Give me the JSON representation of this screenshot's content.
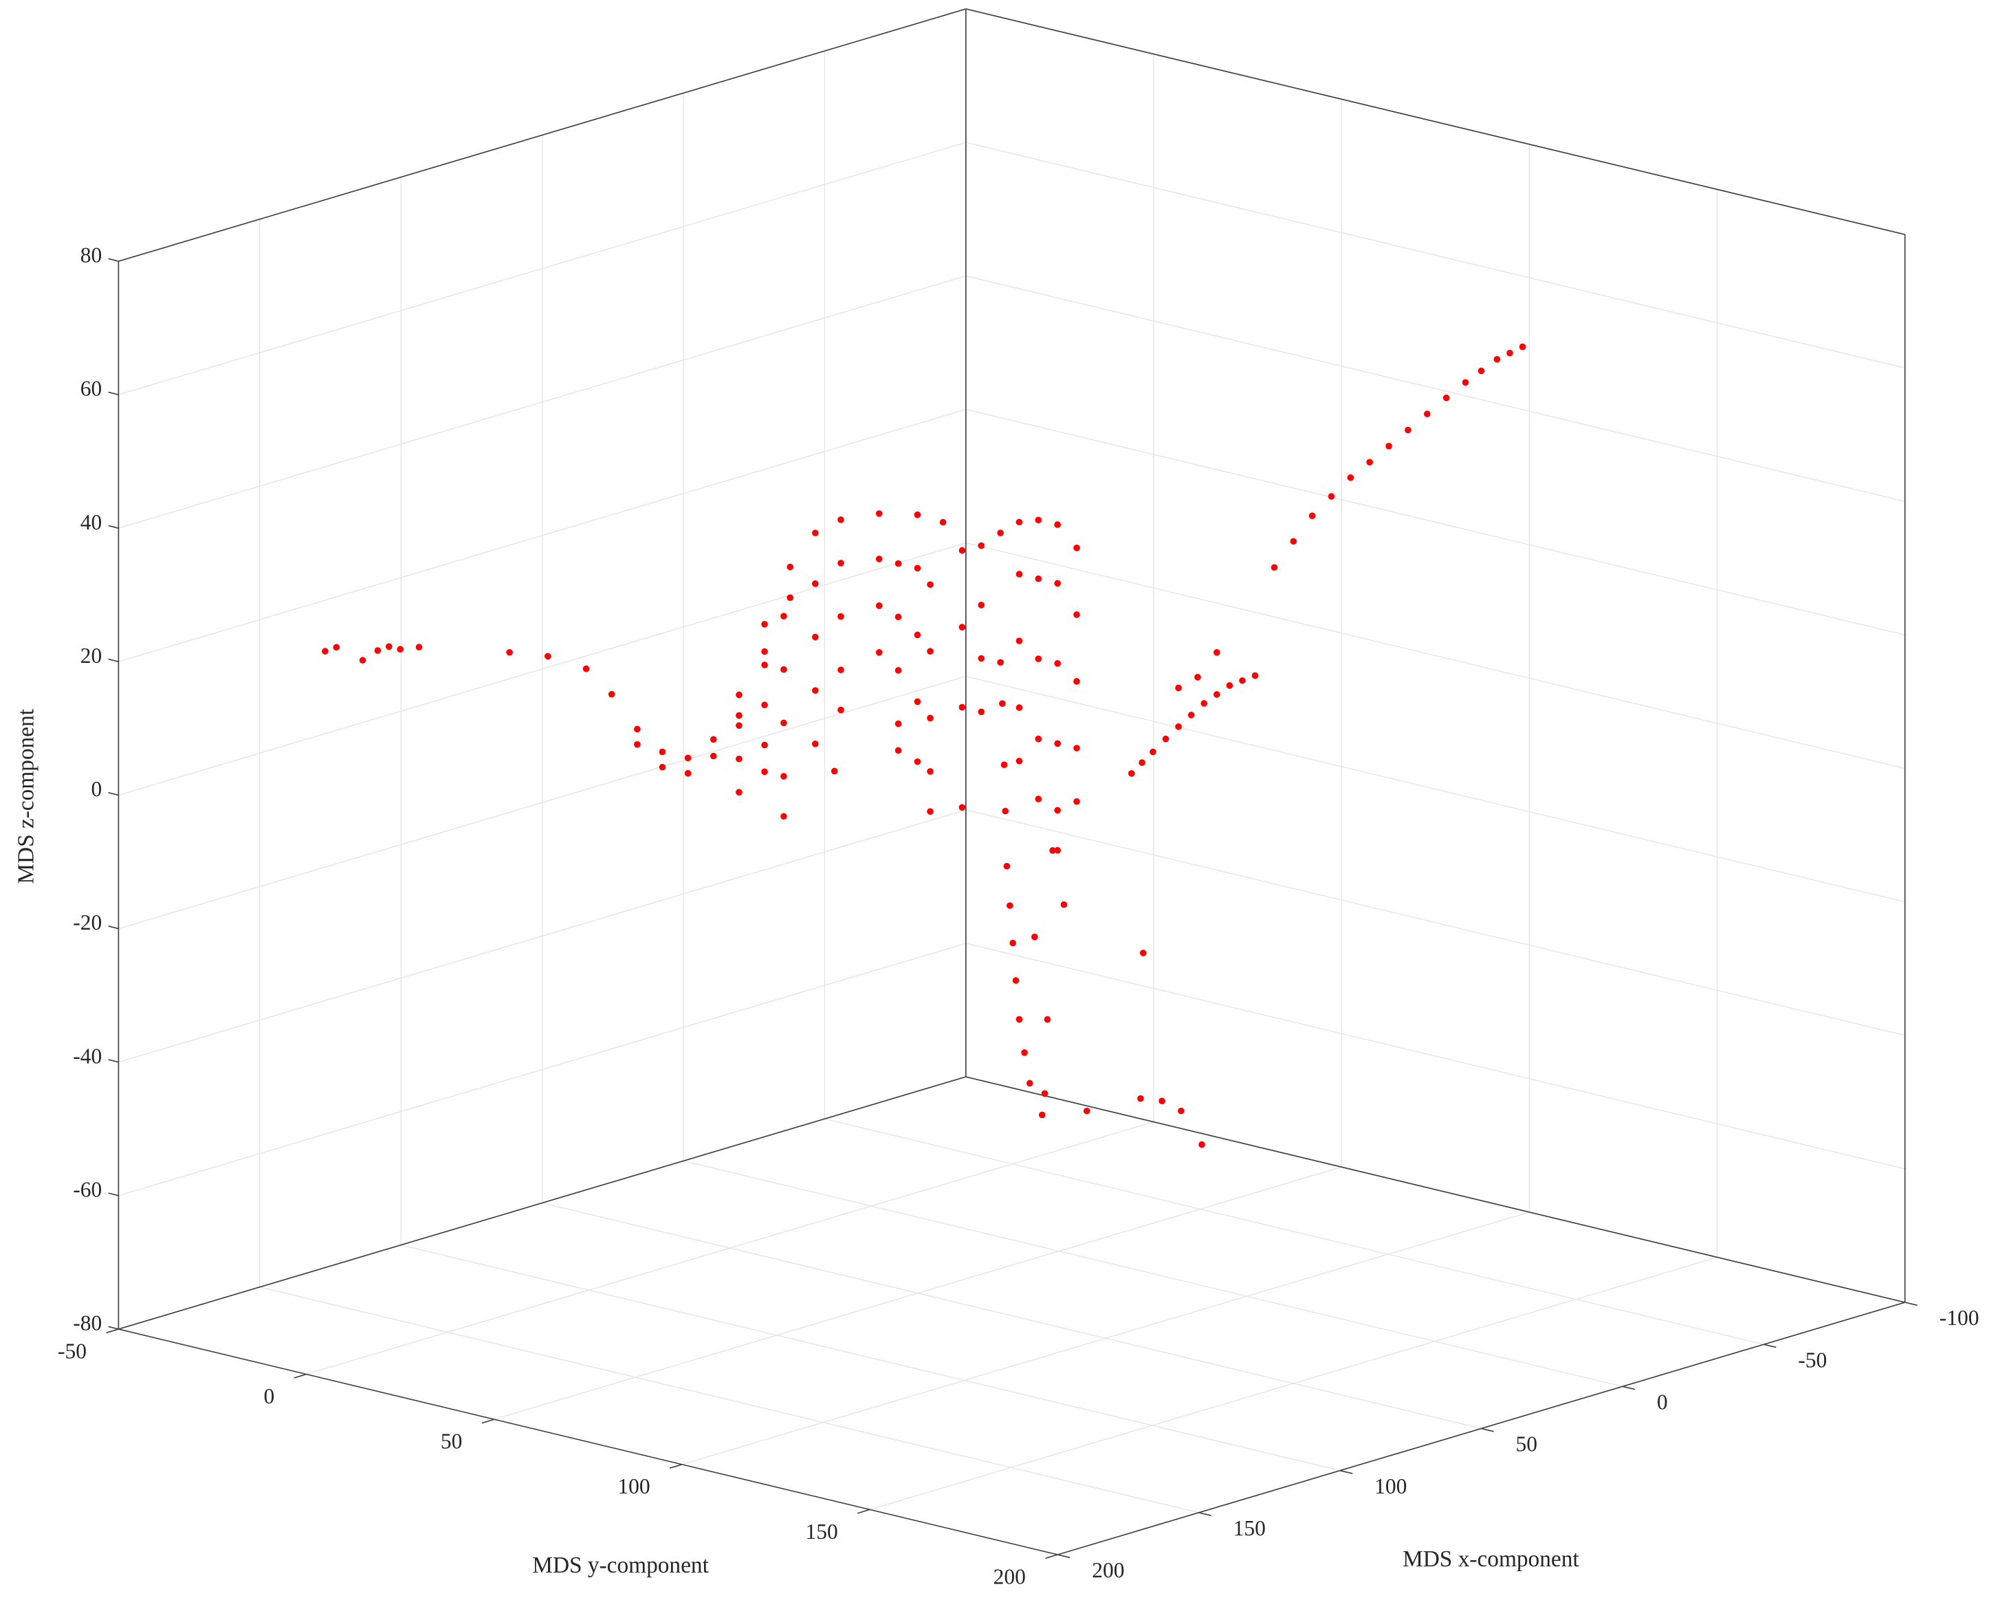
{
  "chart_data": {
    "type": "scatter3d",
    "xlabel": "MDS x-component",
    "ylabel": "MDS y-component",
    "zlabel": "MDS z-component",
    "xlim": [
      -100,
      200
    ],
    "ylim": [
      -50,
      200
    ],
    "zlim": [
      -80,
      80
    ],
    "xticks": [
      -100,
      -50,
      0,
      50,
      100,
      150,
      200
    ],
    "yticks": [
      -50,
      0,
      50,
      100,
      150,
      200
    ],
    "zticks": [
      -80,
      -60,
      -40,
      -20,
      0,
      20,
      40,
      60,
      80
    ],
    "grid": true,
    "color": "#ff0000",
    "x": [
      200,
      200,
      200,
      200,
      200,
      200,
      200,
      100,
      100,
      100,
      100,
      100,
      100,
      100,
      100,
      100,
      100,
      100,
      100,
      100,
      100,
      100,
      100,
      100,
      100,
      100,
      100,
      100,
      100,
      100,
      100,
      100,
      100,
      100,
      100,
      100,
      100,
      100,
      100,
      100,
      100,
      100,
      100,
      100,
      100,
      100,
      100,
      100,
      100,
      100,
      100,
      100,
      100,
      100,
      100,
      100,
      100,
      100,
      100,
      100,
      100,
      100,
      100,
      100,
      100,
      100,
      100,
      100,
      0,
      0,
      0,
      0,
      0,
      0,
      0,
      0,
      0,
      0,
      0,
      0,
      0,
      0,
      0,
      0,
      0,
      0,
      0,
      0,
      0,
      0,
      0,
      0,
      0,
      0,
      0,
      0,
      0,
      0,
      0,
      0,
      0,
      0,
      0,
      0,
      0,
      0,
      0,
      0,
      0,
      0,
      0,
      0,
      0,
      0,
      0,
      0,
      0,
      0,
      0,
      0,
      0,
      -50,
      -50,
      -50,
      -50,
      -50,
      -50,
      -50,
      -50,
      -50,
      -50,
      -50,
      -50,
      -50,
      -50,
      -50,
      -50,
      -50,
      -50,
      -50,
      -50,
      -50,
      -50,
      -50,
      -50,
      -50,
      -50,
      -50,
      -50,
      -50
    ],
    "y": [
      5,
      8,
      15,
      19,
      22,
      25,
      30,
      -21.1,
      -10.9,
      -0.7,
      6.1,
      12.9,
      19.6,
      26.4,
      33.2,
      40,
      46.8,
      53.6,
      60.3,
      67.1,
      77.3,
      87.5,
      94.3,
      12.9,
      19.6,
      26.4,
      33.2,
      40,
      46.8,
      53.6,
      40,
      40,
      40,
      46.8,
      46.8,
      46.8,
      46.8,
      51.9,
      51.9,
      51.9,
      51.9,
      51.9,
      60.3,
      60.3,
      60.3,
      60.3,
      67.1,
      67.1,
      67.1,
      67.1,
      77.3,
      77.3,
      77.3,
      82.4,
      82.4,
      82.4,
      82.4,
      82.4,
      87.5,
      87.5,
      87.5,
      87.5,
      90.9,
      90.9,
      90.9,
      90.9,
      90.9,
      65.4,
      24.2,
      29.3,
      34.4,
      39.4,
      44.5,
      49.6,
      54.7,
      34.4,
      34.9,
      35.4,
      35.7,
      36.1,
      36.9,
      37.7,
      38.5,
      39.4,
      40.8,
      42.2,
      46.2,
      39.4,
      39.4,
      39.4,
      39.4,
      44.5,
      44.5,
      44.5,
      44.5,
      49.6,
      49.6,
      49.6,
      49.6,
      49.6,
      54.7,
      54.7,
      54.7,
      54.7,
      29.3,
      29.3,
      29.3,
      24.2,
      24.2,
      24.2,
      72.4,
      71.7,
      77.4,
      82.5,
      88,
      57.4,
      45.5,
      46.9,
      43.5,
      48.3,
      51.3,
      69.7,
      74.8,
      79.8,
      84.9,
      90,
      95.1,
      100.2,
      105.3,
      110.4,
      115.5,
      120.6,
      124.8,
      129,
      132.4,
      135.8,
      31.7,
      34.5,
      37.4,
      40.8,
      44.2,
      47.6,
      51,
      54.4,
      57.8,
      61.2,
      64.6,
      44.2,
      49.3,
      54.4
    ],
    "z": [
      29,
      30,
      29,
      31,
      32,
      32,
      33,
      12.7,
      13.5,
      13,
      10.1,
      5.8,
      3.3,
      3.3,
      7,
      14.6,
      26.1,
      35.6,
      41.6,
      44.5,
      46.8,
      48,
      47.8,
      3.5,
      1,
      1,
      4.5,
      11.5,
      22,
      31,
      10,
      5,
      0,
      20,
      14,
      8,
      4,
      28,
      20,
      12,
      4,
      -2,
      34,
      26,
      18,
      10,
      38,
      30,
      22,
      16,
      40,
      33,
      26,
      40,
      32,
      24,
      16,
      12,
      40,
      30,
      20,
      11,
      38,
      28,
      18,
      10,
      4,
      6.6,
      21.5,
      22.9,
      25.5,
      27.8,
      28.8,
      28.8,
      26,
      6.1,
      0,
      -9.1,
      -16,
      -24.2,
      -30,
      -35.5,
      -41,
      -46.7,
      -51.5,
      -55.9,
      -56.9,
      20,
      10,
      0,
      -8,
      20,
      8,
      -4,
      -13,
      20,
      8,
      -4,
      -14,
      -20,
      16,
      6,
      -4,
      -12,
      14,
      6,
      -2,
      10,
      -2,
      -17,
      -32.3,
      -54.2,
      -53.8,
      -54.6,
      -58.9,
      -58,
      -60.2,
      -45.7,
      -33.8,
      -20.2,
      -27.9,
      18.8,
      23.4,
      27.9,
      31.5,
      35,
      38,
      41.1,
      44.2,
      47.3,
      50.4,
      53.4,
      55.7,
      58,
      59.4,
      60.8,
      -17.2,
      -15.2,
      -13.2,
      -10.8,
      -8.5,
      -6.3,
      -4.1,
      -2.3,
      -0.5,
      0.7,
      1.9,
      -2.7,
      -0.4,
      4
    ]
  }
}
